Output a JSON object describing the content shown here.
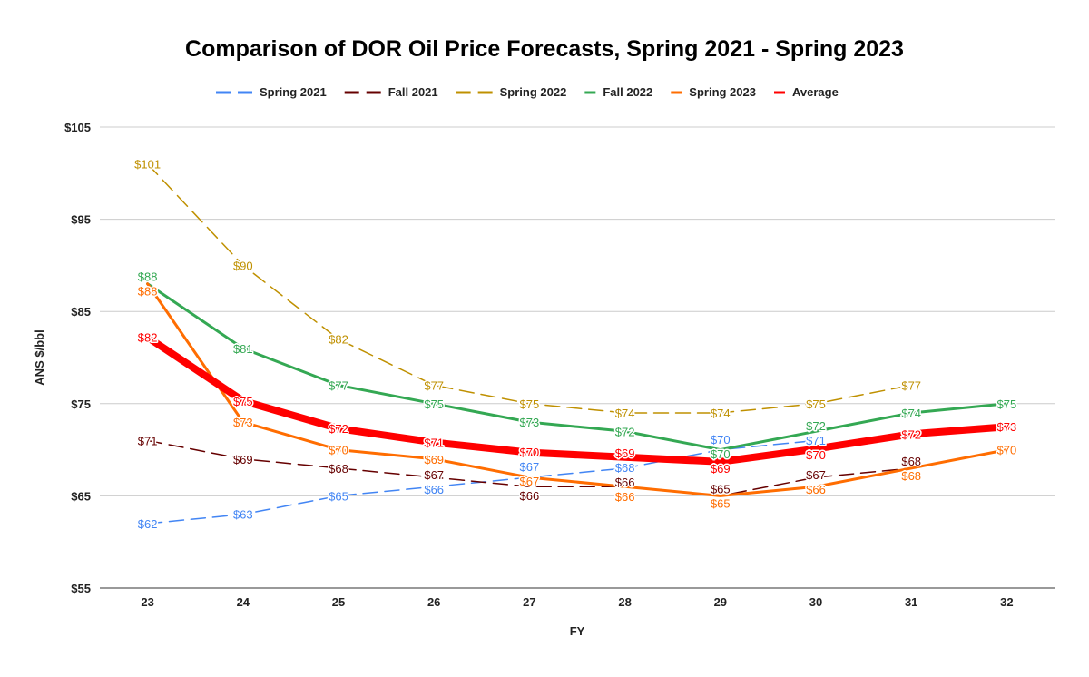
{
  "chart_data": {
    "type": "line",
    "title": "Comparison of DOR Oil Price Forecasts, Spring 2021 - Spring 2023",
    "xlabel": "FY",
    "ylabel": "ANS $/bbl",
    "categories": [
      "23",
      "24",
      "25",
      "26",
      "27",
      "28",
      "29",
      "30",
      "31",
      "32"
    ],
    "ylim": [
      55,
      105
    ],
    "yticks": [
      55,
      65,
      75,
      85,
      95,
      105
    ],
    "ytick_labels": [
      "$55",
      "$65",
      "$75",
      "$85",
      "$95",
      "$105"
    ],
    "grid": true,
    "legend_position": "top",
    "series": [
      {
        "name": "Spring 2021",
        "color": "#4285f4",
        "dashed": true,
        "width": 1.5,
        "values": [
          62,
          63,
          65,
          66,
          67,
          68,
          70,
          71,
          null,
          null
        ]
      },
      {
        "name": "Fall 2021",
        "color": "#660000",
        "dashed": true,
        "width": 1.5,
        "values": [
          71,
          69,
          68,
          67,
          66,
          66,
          65,
          67,
          68,
          null
        ]
      },
      {
        "name": "Spring 2022",
        "color": "#bf9000",
        "dashed": true,
        "width": 1.5,
        "values": [
          101,
          90,
          82,
          77,
          75,
          74,
          74,
          75,
          77,
          null
        ]
      },
      {
        "name": "Fall 2022",
        "color": "#34a853",
        "dashed": false,
        "width": 3,
        "values": [
          88,
          81,
          77,
          75,
          73,
          72,
          70,
          72,
          74,
          75
        ]
      },
      {
        "name": "Spring 2023",
        "color": "#ff6d01",
        "dashed": false,
        "width": 3,
        "values": [
          88,
          73,
          70,
          69,
          67,
          66,
          65,
          66,
          68,
          70
        ]
      },
      {
        "name": "Average",
        "color": "#ff0000",
        "dashed": false,
        "width": 8,
        "values": [
          82.2,
          75.3,
          72.3,
          70.8,
          69.7,
          69.2,
          68.7,
          70.1,
          71.7,
          72.5
        ]
      }
    ]
  }
}
